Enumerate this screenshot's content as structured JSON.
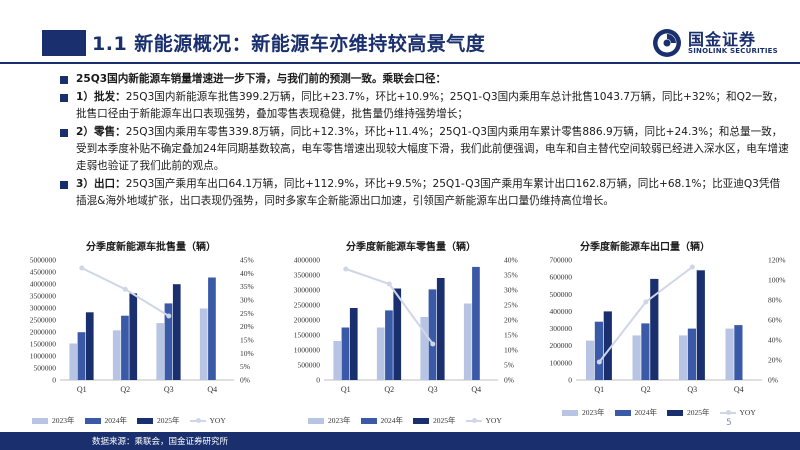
{
  "header": {
    "title": "1.1 新能源概况：新能源车亦维持较高景气度",
    "logo_cn": "国金证券",
    "logo_en": "SINOLINK SECURITIES"
  },
  "bullets": [
    {
      "lead": "",
      "text": "25Q3国内新能源车销量增速进一步下滑，与我们前的预测一致。乘联会口径："
    },
    {
      "lead": "1）批发：",
      "text": "25Q3国内新能源车批售399.2万辆，同比+23.7%，环比+10.9%；25Q1-Q3国内乘用车总计批售1043.7万辆，同比+32%；和Q2一致，批售口径由于新能源车出口表现强势，叠加零售表现稳健，批售量仍维持强势增长；"
    },
    {
      "lead": "2）零售：",
      "text": "25Q3国内乘用车零售339.8万辆，同比+12.3%，环比+11.4%；25Q1-Q3国内乘用车累计零售886.9万辆，同比+24.3%；和总量一致，受到本季度补贴不确定叠加24年同期基数较高，电车零售增速出现较大幅度下滑，我们此前便强调，电车和自主替代空间较弱已经进入深水区，电车增速走弱也验证了我们此前的观点。"
    },
    {
      "lead": "3）出口：",
      "text": "25Q3国产乘用车出口64.1万辆，同比+112.9%，环比+9.5%；25Q1-Q3国产乘用车累计出口162.8万辆，同比+68.1%；比亚迪Q3凭借插混&海外地域扩张，出口表现仍强势，同时多家车企新能源出口加速，引领国产新能源车出口量仍维持高位增长。"
    }
  ],
  "legend_labels": [
    "2023年",
    "2024年",
    "2025年",
    "YOY"
  ],
  "colors": {
    "c2023": "#b8c4e4",
    "c2024": "#3a5aa8",
    "c2025": "#1a2f6e",
    "yoy": "#cfd6e8",
    "navy": "#1a2f6e"
  },
  "chart_data": [
    {
      "type": "bar",
      "title": "分季度新能源车批售量（辆）",
      "categories": [
        "Q1",
        "Q2",
        "Q3",
        "Q4"
      ],
      "series": [
        {
          "name": "2023年",
          "values": [
            1520000,
            2070000,
            2370000,
            2980000
          ]
        },
        {
          "name": "2024年",
          "values": [
            1990000,
            2680000,
            3190000,
            4270000
          ]
        },
        {
          "name": "2025年",
          "values": [
            2820000,
            3610000,
            3990000,
            null
          ]
        },
        {
          "name": "YOY",
          "axis": "right",
          "type": "line",
          "values": [
            0.42,
            0.34,
            0.24,
            null
          ]
        }
      ],
      "ylim": [
        0,
        5000000
      ],
      "yticks": [
        0,
        500000,
        1000000,
        1500000,
        2000000,
        2500000,
        3000000,
        3500000,
        4000000,
        4500000,
        5000000
      ],
      "y2lim": [
        0,
        0.45
      ],
      "y2ticks": [
        "0%",
        "5%",
        "10%",
        "15%",
        "20%",
        "25%",
        "30%",
        "35%",
        "40%",
        "45%"
      ],
      "legend": "bottom"
    },
    {
      "type": "bar",
      "title": "分季度新能源车零售量（辆）",
      "categories": [
        "Q1",
        "Q2",
        "Q3",
        "Q4"
      ],
      "series": [
        {
          "name": "2023年",
          "values": [
            1300000,
            1750000,
            2100000,
            2550000
          ]
        },
        {
          "name": "2024年",
          "values": [
            1750000,
            2320000,
            3020000,
            3770000
          ]
        },
        {
          "name": "2025年",
          "values": [
            2400000,
            3050000,
            3400000,
            null
          ]
        },
        {
          "name": "YOY",
          "axis": "right",
          "type": "line",
          "values": [
            0.37,
            0.32,
            0.12,
            null
          ]
        }
      ],
      "ylim": [
        0,
        4000000
      ],
      "yticks": [
        0,
        500000,
        1000000,
        1500000,
        2000000,
        2500000,
        3000000,
        3500000,
        4000000
      ],
      "y2lim": [
        0,
        0.4
      ],
      "y2ticks": [
        "0%",
        "5%",
        "10%",
        "15%",
        "20%",
        "25%",
        "30%",
        "35%",
        "40%"
      ],
      "legend": "bottom"
    },
    {
      "type": "bar",
      "title": "分季度新能源车出口量（辆）",
      "categories": [
        "Q1",
        "Q2",
        "Q3",
        "Q4"
      ],
      "series": [
        {
          "name": "2023年",
          "values": [
            230000,
            260000,
            260000,
            300000
          ]
        },
        {
          "name": "2024年",
          "values": [
            340000,
            330000,
            300000,
            320000
          ]
        },
        {
          "name": "2025年",
          "values": [
            400000,
            590000,
            640000,
            null
          ]
        },
        {
          "name": "YOY",
          "axis": "right",
          "type": "line",
          "values": [
            0.18,
            0.78,
            1.13,
            null
          ]
        }
      ],
      "ylim": [
        0,
        700000
      ],
      "yticks": [
        0,
        100000,
        200000,
        300000,
        400000,
        500000,
        600000,
        700000
      ],
      "y2lim": [
        0,
        1.2
      ],
      "y2ticks": [
        "0%",
        "20%",
        "40%",
        "60%",
        "80%",
        "100%",
        "120%"
      ],
      "legend": "bottom"
    }
  ],
  "footer": {
    "source": "数据来源：乘联会，国金证券研究所",
    "page": "5"
  }
}
